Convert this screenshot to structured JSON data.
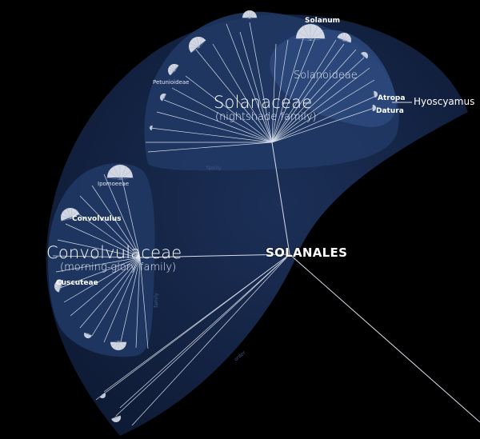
{
  "order": {
    "name": "SOLANALES"
  },
  "families": [
    {
      "name": "Solanaceae",
      "common": "(nightshade family)"
    },
    {
      "name": "Convolvulaceae",
      "common": "(morning-glory family)"
    }
  ],
  "subfamilies": [
    {
      "name": "Solanoideae"
    }
  ],
  "tribes_small": [
    {
      "name": "Petunioideae"
    },
    {
      "name": "Ipomoeeae"
    }
  ],
  "genera": [
    {
      "name": "Solanum"
    },
    {
      "name": "Atropa"
    },
    {
      "name": "Datura"
    },
    {
      "name": "Convolvulus"
    },
    {
      "name": "Cuscuteae"
    }
  ],
  "callout": {
    "name": "Hyoscyamus"
  },
  "rank_labels": [
    "family",
    "family",
    "order"
  ],
  "colors": {
    "background": "#000000",
    "outer_region": "#15264a",
    "family_region": "#2a4370",
    "line": "#d7dde8",
    "node": "#e6e9ef"
  }
}
